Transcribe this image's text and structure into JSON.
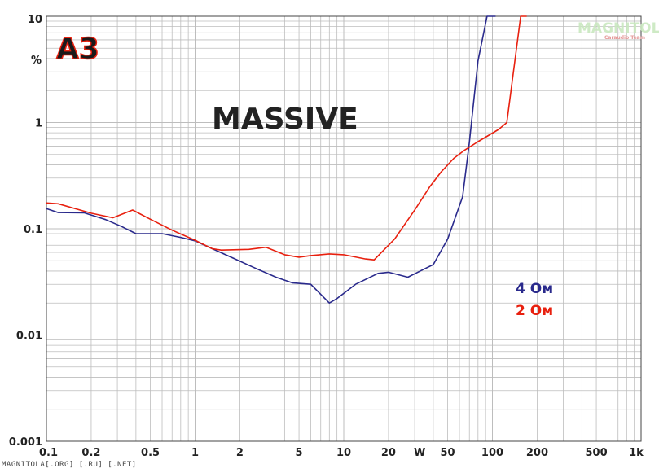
{
  "badge": "A3",
  "watermark": "MAGNITOLA",
  "watermark_sub": "Caraudio Team",
  "footer": "MAGNITOLA[.ORG] [.RU] [.NET]",
  "colors": {
    "series_4ohm": "#2a2a8c",
    "series_2ohm": "#e8200f",
    "badge_red": "#e8200f",
    "badge_dark": "#1a1a1a",
    "grid": "#bdbdbd",
    "frame": "#444444"
  },
  "chart_data": {
    "type": "line",
    "title": "MASSIVE",
    "ylabel": "%",
    "xlabel": "W",
    "x_scale": "log",
    "y_scale": "log",
    "xlim": [
      0.1,
      1000
    ],
    "ylim": [
      0.001,
      10
    ],
    "x_ticks": [
      {
        "v": 0.1,
        "label": "0.1"
      },
      {
        "v": 0.2,
        "label": "0.2"
      },
      {
        "v": 0.5,
        "label": "0.5"
      },
      {
        "v": 1,
        "label": "1"
      },
      {
        "v": 2,
        "label": "2"
      },
      {
        "v": 5,
        "label": "5"
      },
      {
        "v": 10,
        "label": "10"
      },
      {
        "v": 20,
        "label": "20"
      },
      {
        "v": 50,
        "label": "50"
      },
      {
        "v": 100,
        "label": "100"
      },
      {
        "v": 200,
        "label": "200"
      },
      {
        "v": 500,
        "label": "500"
      },
      {
        "v": 1000,
        "label": "1k"
      }
    ],
    "y_ticks": [
      {
        "v": 10,
        "label": "10"
      },
      {
        "v": 1,
        "label": "1"
      },
      {
        "v": 0.1,
        "label": "0.1"
      },
      {
        "v": 0.01,
        "label": "0.01"
      },
      {
        "v": 0.001,
        "label": "0.001"
      }
    ],
    "series": [
      {
        "name": "4 Ом",
        "color": "#2a2a8c",
        "points": [
          [
            0.1,
            0.155
          ],
          [
            0.12,
            0.142
          ],
          [
            0.18,
            0.141
          ],
          [
            0.25,
            0.122
          ],
          [
            0.32,
            0.105
          ],
          [
            0.4,
            0.09
          ],
          [
            0.6,
            0.09
          ],
          [
            0.8,
            0.083
          ],
          [
            1.0,
            0.077
          ],
          [
            1.3,
            0.065
          ],
          [
            1.8,
            0.053
          ],
          [
            2.5,
            0.043
          ],
          [
            3.5,
            0.035
          ],
          [
            4.5,
            0.031
          ],
          [
            6.0,
            0.03
          ],
          [
            8.0,
            0.02
          ],
          [
            9.0,
            0.022
          ],
          [
            12.0,
            0.03
          ],
          [
            17.0,
            0.038
          ],
          [
            20.0,
            0.039
          ],
          [
            27.0,
            0.035
          ],
          [
            35.0,
            0.042
          ],
          [
            40.0,
            0.046
          ],
          [
            50.0,
            0.08
          ],
          [
            63.0,
            0.2
          ],
          [
            70.0,
            0.65
          ],
          [
            80.0,
            3.8
          ],
          [
            92.0,
            10.0
          ],
          [
            105.0,
            10.0
          ]
        ]
      },
      {
        "name": "2 Ом",
        "color": "#e8200f",
        "points": [
          [
            0.1,
            0.175
          ],
          [
            0.12,
            0.172
          ],
          [
            0.2,
            0.14
          ],
          [
            0.28,
            0.127
          ],
          [
            0.38,
            0.15
          ],
          [
            0.5,
            0.123
          ],
          [
            0.7,
            0.097
          ],
          [
            1.0,
            0.078
          ],
          [
            1.3,
            0.065
          ],
          [
            1.5,
            0.063
          ],
          [
            2.3,
            0.064
          ],
          [
            3.0,
            0.067
          ],
          [
            4.0,
            0.057
          ],
          [
            5.0,
            0.054
          ],
          [
            6.0,
            0.056
          ],
          [
            8.0,
            0.058
          ],
          [
            10.0,
            0.057
          ],
          [
            14.0,
            0.052
          ],
          [
            16.0,
            0.051
          ],
          [
            22.0,
            0.08
          ],
          [
            30.0,
            0.15
          ],
          [
            38.0,
            0.25
          ],
          [
            45.0,
            0.34
          ],
          [
            55.0,
            0.46
          ],
          [
            65.0,
            0.55
          ],
          [
            80.0,
            0.66
          ],
          [
            110.0,
            0.86
          ],
          [
            125.0,
            1.0
          ],
          [
            155.0,
            10.0
          ],
          [
            170.0,
            10.0
          ]
        ]
      }
    ],
    "legend": {
      "placement": "right-middle"
    },
    "grid": true
  }
}
